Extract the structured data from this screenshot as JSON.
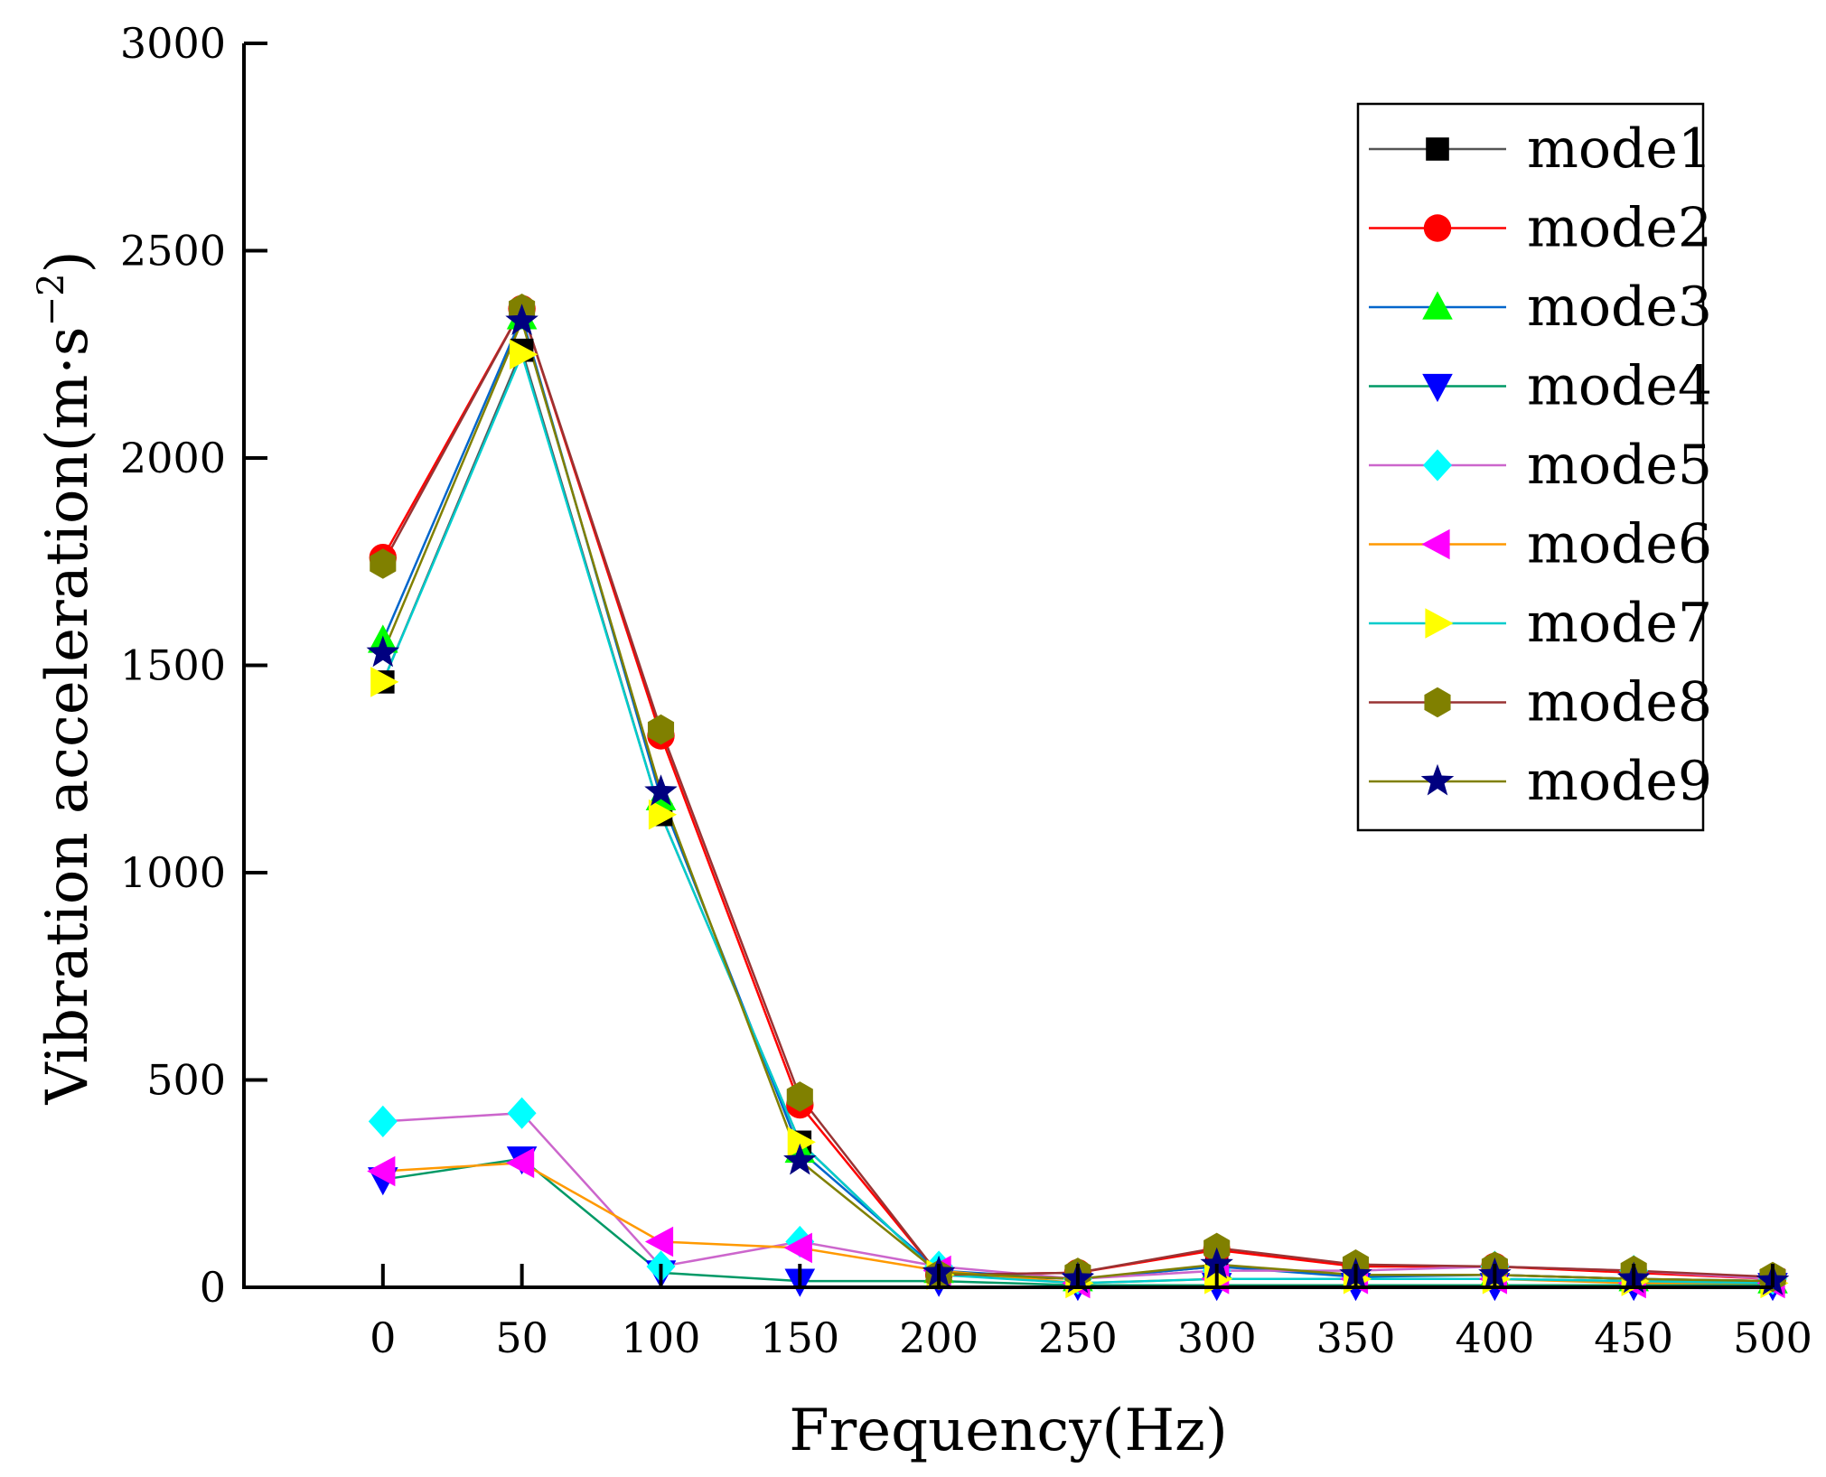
{
  "chart_data": {
    "type": "line",
    "title": "",
    "xlabel": "Frequency(Hz)",
    "ylabel_main": "Vibration acceleration(m·s",
    "ylabel_sup": "−2",
    "ylabel_close": ")",
    "xlim": [
      -50,
      500
    ],
    "ylim": [
      0,
      3000
    ],
    "xticks": [
      0,
      50,
      100,
      150,
      200,
      250,
      300,
      350,
      400,
      450,
      500
    ],
    "xtick_labels": [
      "0",
      "50",
      "100",
      "150",
      "200",
      "250",
      "300",
      "350",
      "400",
      "450",
      "500"
    ],
    "yticks": [
      0,
      500,
      1000,
      1500,
      2000,
      2500,
      3000
    ],
    "ytick_labels": [
      "0",
      "500",
      "1000",
      "1500",
      "2000",
      "2500",
      "3000"
    ],
    "legend_position": "top-right",
    "x": [
      0,
      50,
      100,
      150,
      200,
      250,
      300,
      350,
      400,
      450,
      500
    ],
    "series": [
      {
        "name": "mode1",
        "marker": "square",
        "line_color": "#555555",
        "marker_color": "#000000",
        "values": [
          1460,
          2260,
          1140,
          350,
          30,
          20,
          50,
          30,
          30,
          20,
          15
        ]
      },
      {
        "name": "mode2",
        "marker": "circle",
        "line_color": "#ff0000",
        "marker_color": "#ff0000",
        "values": [
          1760,
          2360,
          1330,
          440,
          30,
          35,
          90,
          50,
          50,
          35,
          20
        ]
      },
      {
        "name": "mode3",
        "marker": "triangle-up",
        "line_color": "#0066cc",
        "marker_color": "#00ff00",
        "values": [
          1560,
          2340,
          1180,
          330,
          40,
          20,
          50,
          25,
          30,
          20,
          15
        ]
      },
      {
        "name": "mode4",
        "marker": "triangle-down",
        "line_color": "#009966",
        "marker_color": "#0000ff",
        "values": [
          260,
          310,
          35,
          15,
          15,
          5,
          5,
          5,
          5,
          5,
          5
        ]
      },
      {
        "name": "mode5",
        "marker": "diamond",
        "line_color": "#cc66cc",
        "marker_color": "#00ffff",
        "values": [
          400,
          420,
          50,
          110,
          50,
          20,
          40,
          40,
          50,
          40,
          20
        ]
      },
      {
        "name": "mode6",
        "marker": "triangle-left",
        "line_color": "#ff9900",
        "marker_color": "#ff00ff",
        "values": [
          280,
          300,
          110,
          95,
          40,
          10,
          20,
          20,
          20,
          10,
          10
        ]
      },
      {
        "name": "mode7",
        "marker": "triangle-right",
        "line_color": "#00cccc",
        "marker_color": "#ffff00",
        "values": [
          1460,
          2250,
          1140,
          350,
          30,
          10,
          20,
          20,
          20,
          15,
          10
        ]
      },
      {
        "name": "mode8",
        "marker": "hexagon",
        "line_color": "#993333",
        "marker_color": "#808000",
        "values": [
          1745,
          2360,
          1345,
          460,
          30,
          35,
          95,
          55,
          50,
          40,
          25
        ]
      },
      {
        "name": "mode9",
        "marker": "star",
        "line_color": "#808000",
        "marker_color": "#000080",
        "values": [
          1530,
          2330,
          1195,
          305,
          35,
          20,
          55,
          30,
          30,
          20,
          15
        ]
      }
    ]
  }
}
